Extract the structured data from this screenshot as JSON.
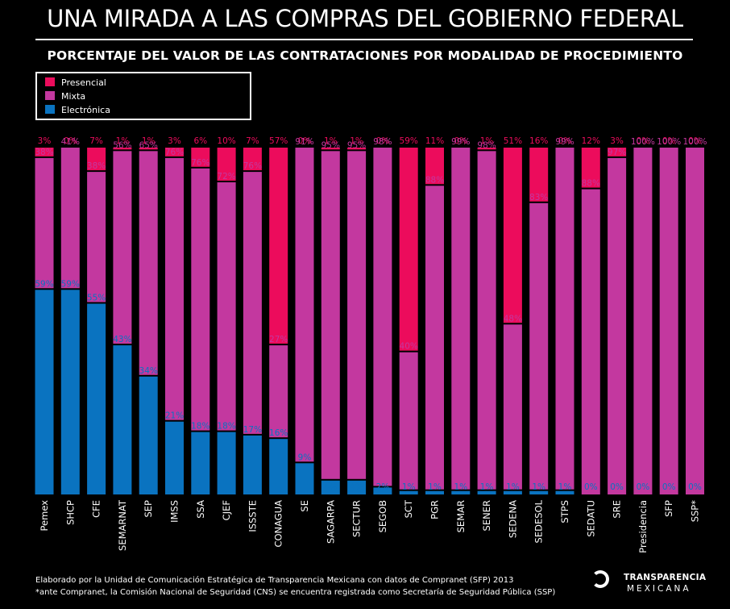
{
  "title": "UNA MIRADA A LAS COMPRAS DEL GOBIERNO FEDERAL",
  "subtitle": "PORCENTAJE DEL VALOR DE LAS CONTRATACIONES POR MODALIDAD DE PROCEDIMIENTO",
  "legend": [
    {
      "label": "Presencial",
      "color": "#ec0c5c"
    },
    {
      "label": "Mixta",
      "color": "#c3389f"
    },
    {
      "label": "Electrónica",
      "color": "#0a73c0"
    }
  ],
  "footer": [
    "Elaborado por la Unidad de Comunicación Estratégica de Transparencia Mexicana con datos de Compranet (SFP) 2013",
    "*ante Compranet, la Comisión Nacional de Seguridad (CNS) se encuentra registrada como Secretaría de Seguridad Pública (SSP)"
  ],
  "logo": {
    "line1": "TRANSPARENCIA",
    "line2": "MEXICANA"
  },
  "chart_data": {
    "type": "bar",
    "stacked": true,
    "ylim": [
      0,
      100
    ],
    "colors": {
      "presencial": "#ec0c5c",
      "mixta": "#c3389f",
      "electronica": "#0a73c0"
    },
    "categories": [
      "Pemex",
      "SHCP",
      "CFE",
      "SEMARNAT",
      "SEP",
      "IMSS",
      "SSA",
      "CJEF",
      "ISSSTE",
      "CONAGUA",
      "SE",
      "SAGARPA",
      "SECTUR",
      "SEGOB",
      "SCT",
      "PGR",
      "SEMAR",
      "SENER",
      "SEDENA",
      "SEDESOL",
      "STPS",
      "SEDATU",
      "SRE",
      "Presidencia",
      "SFP",
      "SSP*"
    ],
    "series": [
      {
        "name": "Electrónica",
        "key": "electronica",
        "values": [
          59,
          59,
          55,
          43,
          34,
          21,
          18,
          18,
          17,
          16,
          9,
          4,
          4,
          2,
          1,
          1,
          1,
          1,
          1,
          1,
          1,
          0,
          0,
          0,
          0,
          0
        ]
      },
      {
        "name": "Mixta",
        "key": "mixta",
        "values": [
          38,
          41,
          38,
          56,
          65,
          76,
          76,
          72,
          76,
          27,
          91,
          95,
          95,
          98,
          40,
          88,
          99,
          98,
          48,
          83,
          99,
          88,
          97,
          100,
          100,
          100
        ]
      },
      {
        "name": "Presencial",
        "key": "presencial",
        "values": [
          3,
          0,
          7,
          1,
          1,
          3,
          6,
          10,
          7,
          57,
          0,
          1,
          1,
          0,
          59,
          11,
          0,
          1,
          51,
          16,
          0,
          12,
          3,
          0,
          0,
          0
        ]
      }
    ]
  }
}
